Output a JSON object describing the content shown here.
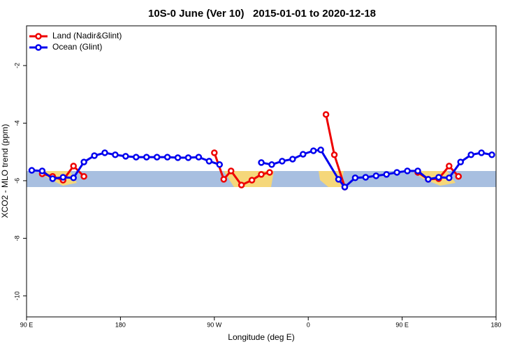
{
  "chart_data": {
    "type": "line",
    "title": "10S-0 June (Ver 10)   2015-01-01 to 2020-12-18",
    "x_label": "Longitude (deg E)",
    "y_label": "XCO2 - MLO trend (ppm)",
    "xlim": [
      90,
      540
    ],
    "xticks": [
      {
        "value": 90,
        "label": "90 E"
      },
      180,
      {
        "value": 270,
        "label": "90 W"
      },
      {
        "value": 360,
        "label": "0"
      },
      {
        "value": 450,
        "label": "90 E"
      },
      {
        "value": 540,
        "label": "180"
      }
    ],
    "ylim": [
      -10.73,
      -0.62
    ],
    "yticks": [
      -2,
      -4,
      -6,
      -8,
      -10
    ],
    "legend": "top-left",
    "series": [
      {
        "name": "Land (Nadir&Glint)",
        "color": "#ee0000",
        "x": [
          105,
          115,
          125,
          135,
          145,
          200,
          270,
          279,
          286,
          296,
          306,
          315,
          323,
          350,
          377,
          385,
          395,
          430,
          465,
          475,
          485,
          495,
          504
        ],
        "values": [
          -5.76,
          -5.85,
          -5.98,
          -5.49,
          -5.85,
          null,
          -5.03,
          -5.95,
          -5.66,
          -6.15,
          -5.98,
          -5.78,
          -5.71,
          null,
          -3.7,
          -5.1,
          -6.22,
          null,
          -5.71,
          -5.95,
          -5.93,
          -5.49,
          -5.85
        ]
      },
      {
        "name": "Ocean (Glint)",
        "color": "#0000ee",
        "x": [
          95,
          105,
          115,
          125,
          135,
          145,
          155,
          165,
          175,
          185,
          195,
          205,
          215,
          225,
          235,
          245,
          255,
          265,
          275,
          295,
          315,
          325,
          335,
          345,
          355,
          365,
          372,
          389,
          395,
          405,
          415,
          425,
          435,
          445,
          455,
          465,
          475,
          485,
          495,
          506,
          516,
          526,
          536
        ],
        "values": [
          -5.64,
          -5.66,
          -5.93,
          -5.88,
          -5.9,
          -5.35,
          -5.13,
          -5.03,
          -5.1,
          -5.15,
          -5.18,
          -5.18,
          -5.18,
          -5.18,
          -5.2,
          -5.2,
          -5.18,
          -5.32,
          -5.44,
          null,
          -5.37,
          -5.44,
          -5.32,
          -5.25,
          -5.08,
          -4.96,
          -4.93,
          -5.95,
          -6.22,
          -5.9,
          -5.88,
          -5.83,
          -5.78,
          -5.71,
          -5.66,
          -5.66,
          -5.95,
          -5.88,
          -5.9,
          -5.35,
          -5.1,
          -5.03,
          -5.1
        ]
      }
    ]
  }
}
